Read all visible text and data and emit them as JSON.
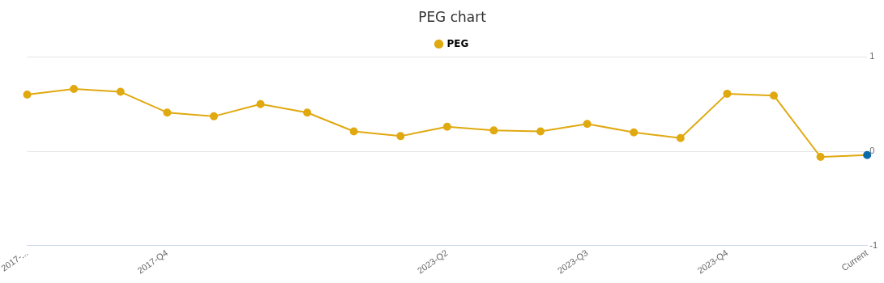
{
  "chart_data": {
    "type": "line",
    "title": "PEG chart",
    "categories": [
      "2017-...",
      null,
      null,
      "2017-Q4",
      null,
      null,
      null,
      null,
      null,
      "2023-Q2",
      null,
      null,
      "2023-Q3",
      null,
      null,
      "2023-Q4",
      null,
      null,
      "Current"
    ],
    "series": [
      {
        "name": "PEG",
        "color": "#e0a910",
        "colors": [
          "#e0a910",
          "#e0a910",
          "#e0a910",
          "#e0a910",
          "#e0a910",
          "#e0a910",
          "#e0a910",
          "#e0a910",
          "#e0a910",
          "#e0a910",
          "#e0a910",
          "#e0a910",
          "#e0a910",
          "#e0a910",
          "#e0a910",
          "#e0a910",
          "#e0a910",
          "#e0a910",
          "#0b6aa8"
        ],
        "values": [
          0.6,
          0.66,
          0.63,
          0.41,
          0.37,
          0.5,
          0.41,
          0.21,
          0.16,
          0.26,
          0.22,
          0.21,
          0.29,
          0.2,
          0.14,
          0.61,
          0.59,
          -0.06,
          -0.04
        ]
      }
    ],
    "ylim": [
      -1,
      1
    ],
    "yticks": [
      -1,
      0,
      1
    ],
    "grid": "y",
    "legend": "top",
    "marker": "circle",
    "line_style": "solid"
  }
}
